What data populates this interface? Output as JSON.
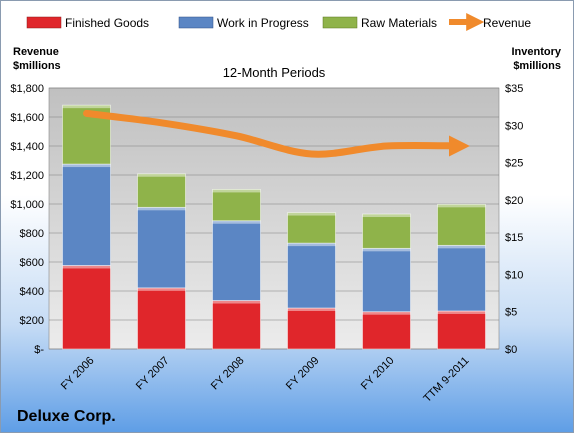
{
  "chart_data": {
    "type": "bar",
    "subtitle": "12-Month Periods",
    "company": "Deluxe Corp.",
    "categories": [
      "FY 2006",
      "FY 2007",
      "FY 2008",
      "FY 2009",
      "FY 2010",
      "TTM 9-2011"
    ],
    "stacked": true,
    "left_axis": {
      "label_line1": "Revenue",
      "label_line2": "$millions",
      "ylim": [
        0,
        1800
      ],
      "ticks": [
        {
          "value": 0,
          "label": "$-"
        },
        {
          "value": 200,
          "label": "$200"
        },
        {
          "value": 400,
          "label": "$400"
        },
        {
          "value": 600,
          "label": "$600"
        },
        {
          "value": 800,
          "label": "$800"
        },
        {
          "value": 1000,
          "label": "$1,000"
        },
        {
          "value": 1200,
          "label": "$1,200"
        },
        {
          "value": 1400,
          "label": "$1,400"
        },
        {
          "value": 1600,
          "label": "$1,600"
        },
        {
          "value": 1800,
          "label": "$1,800"
        }
      ]
    },
    "right_axis": {
      "label_line1": "Inventory",
      "label_line2": "$millions",
      "ylim": [
        0,
        35
      ],
      "ticks": [
        {
          "value": 0,
          "label": "$0"
        },
        {
          "value": 5,
          "label": "$5"
        },
        {
          "value": 10,
          "label": "$10"
        },
        {
          "value": 15,
          "label": "$15"
        },
        {
          "value": 20,
          "label": "$20"
        },
        {
          "value": 25,
          "label": "$25"
        },
        {
          "value": 30,
          "label": "$30"
        },
        {
          "value": 35,
          "label": "$35"
        }
      ]
    },
    "series": [
      {
        "name": "Finished Goods",
        "axis": "right",
        "color": "#e0262b",
        "values": [
          11.2,
          8.2,
          6.5,
          5.5,
          5.0,
          5.1
        ]
      },
      {
        "name": "Work in Progress",
        "axis": "right",
        "color": "#5b86c4",
        "values": [
          13.6,
          10.8,
          10.7,
          8.7,
          8.5,
          8.8
        ]
      },
      {
        "name": "Raw Materials",
        "axis": "right",
        "color": "#8fb34a",
        "values": [
          7.9,
          4.5,
          4.2,
          4.1,
          4.6,
          5.5
        ]
      },
      {
        "name": "Revenue",
        "axis": "left",
        "type": "line",
        "color": "#f08a2c",
        "values": [
          1625,
          1560,
          1470,
          1345,
          1400,
          1400
        ]
      }
    ],
    "grid": true,
    "legend_position": "top"
  }
}
